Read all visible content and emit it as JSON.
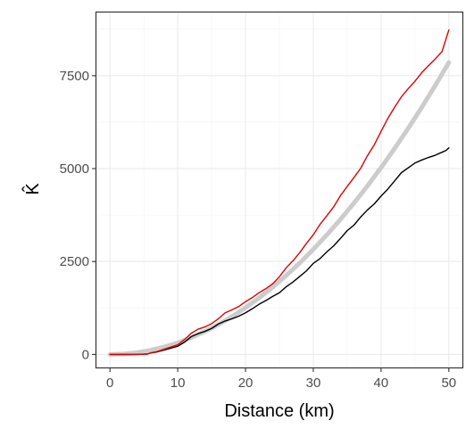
{
  "chart_data": {
    "type": "line",
    "xlabel": "Distance (km)",
    "ylabel": "K̂",
    "xlim": [
      -2,
      52
    ],
    "ylim": [
      -350,
      9200
    ],
    "x_ticks": [
      0,
      10,
      20,
      30,
      40,
      50
    ],
    "y_ticks": [
      0,
      2500,
      5000,
      7500
    ],
    "x_tick_labels": [
      "0",
      "10",
      "20",
      "30",
      "40",
      "50"
    ],
    "y_tick_labels": [
      "0",
      "2500",
      "5000",
      "7500"
    ],
    "grid": true,
    "legend": "none",
    "colors": {
      "observed_black": "#000000",
      "observed_red": "#e00000",
      "envelope_gray": "#cccccc"
    },
    "series": [
      {
        "color": "#000000",
        "x": [
          0,
          2,
          4,
          5.5,
          6,
          7,
          8,
          9,
          10,
          11,
          12,
          13,
          14,
          15,
          16,
          17,
          18,
          19,
          20,
          21,
          22,
          23,
          24,
          25,
          26,
          27,
          28,
          29,
          30,
          31,
          32,
          33,
          34,
          35,
          36,
          37,
          38,
          39,
          40,
          41,
          42,
          43,
          44,
          45,
          46,
          47,
          48,
          49,
          49.6,
          50
        ],
        "values": [
          0,
          0,
          0,
          10,
          40,
          70,
          120,
          170,
          220,
          330,
          480,
          560,
          620,
          700,
          820,
          900,
          960,
          1030,
          1120,
          1230,
          1350,
          1450,
          1560,
          1660,
          1820,
          1950,
          2100,
          2250,
          2450,
          2580,
          2760,
          2920,
          3120,
          3330,
          3480,
          3700,
          3890,
          4050,
          4260,
          4450,
          4670,
          4890,
          5020,
          5150,
          5230,
          5300,
          5360,
          5440,
          5490,
          5560
        ]
      },
      {
        "color": "#e00000",
        "x": [
          0,
          2,
          4,
          5.5,
          6,
          7,
          8,
          9,
          10,
          11,
          12,
          13,
          14,
          15,
          16,
          17,
          18,
          19,
          20,
          21,
          22,
          23,
          24,
          25,
          26,
          27,
          28,
          29,
          30,
          31,
          32,
          33,
          34,
          35,
          36,
          37,
          38,
          39,
          40,
          41,
          42,
          43,
          44,
          45,
          46,
          47,
          48,
          49,
          49.6,
          50
        ],
        "values": [
          0,
          0,
          0,
          10,
          40,
          80,
          140,
          200,
          260,
          400,
          570,
          680,
          740,
          830,
          960,
          1120,
          1200,
          1290,
          1420,
          1530,
          1660,
          1770,
          1900,
          2090,
          2330,
          2520,
          2740,
          2990,
          3220,
          3500,
          3730,
          3970,
          4270,
          4520,
          4760,
          5010,
          5350,
          5640,
          6000,
          6350,
          6650,
          6930,
          7150,
          7350,
          7580,
          7770,
          7950,
          8150,
          8500,
          8730
        ]
      },
      {
        "color": "#cccccc",
        "x": [
          0,
          2,
          4,
          6,
          8,
          10,
          12,
          14,
          16,
          18,
          20,
          22,
          24,
          26,
          28,
          30,
          32,
          34,
          36,
          38,
          40,
          42,
          44,
          46,
          48,
          50
        ],
        "values": [
          0,
          12,
          50,
          113,
          201,
          314,
          452,
          616,
          804,
          1018,
          1257,
          1521,
          1810,
          2124,
          2463,
          2827,
          3217,
          3632,
          4072,
          4536,
          5027,
          5542,
          6082,
          6648,
          7238,
          7854
        ]
      }
    ]
  }
}
